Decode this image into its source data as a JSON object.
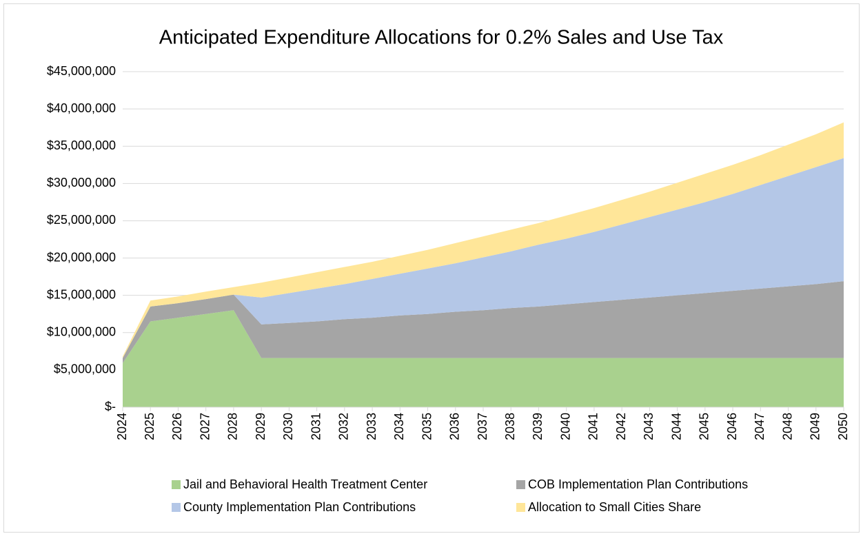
{
  "chart_data": {
    "type": "stacked_area",
    "title": "Anticipated Expenditure Allocations for 0.2% Sales and Use Tax",
    "categories": [
      "2024",
      "2025",
      "2026",
      "2027",
      "2028",
      "2029",
      "2030",
      "2031",
      "2032",
      "2033",
      "2034",
      "2035",
      "2036",
      "2037",
      "2038",
      "2039",
      "2040",
      "2041",
      "2042",
      "2043",
      "2044",
      "2045",
      "2046",
      "2047",
      "2048",
      "2049",
      "2050"
    ],
    "series": [
      {
        "name": "Jail and Behavioral Health Treatment Center",
        "color": "#a9d18e",
        "values": [
          5900000,
          11500000,
          12000000,
          12500000,
          13000000,
          6600000,
          6600000,
          6600000,
          6600000,
          6600000,
          6600000,
          6600000,
          6600000,
          6600000,
          6600000,
          6600000,
          6600000,
          6600000,
          6600000,
          6600000,
          6600000,
          6600000,
          6600000,
          6600000,
          6600000,
          6600000,
          6600000
        ]
      },
      {
        "name": "COB Implementation Plan Contributions",
        "color": "#a5a5a5",
        "values": [
          700000,
          2000000,
          1950000,
          2000000,
          2100000,
          4500000,
          4700000,
          4900000,
          5200000,
          5400000,
          5700000,
          5900000,
          6200000,
          6400000,
          6700000,
          6900000,
          7200000,
          7500000,
          7800000,
          8100000,
          8400000,
          8700000,
          9000000,
          9300000,
          9600000,
          9900000,
          10300000
        ]
      },
      {
        "name": "County Implementation Plan Contributions",
        "color": "#b4c7e7",
        "values": [
          0,
          0,
          0,
          0,
          0,
          3600000,
          4000000,
          4400000,
          4700000,
          5200000,
          5600000,
          6100000,
          6500000,
          7100000,
          7600000,
          8300000,
          8800000,
          9400000,
          10100000,
          10800000,
          11500000,
          12200000,
          13000000,
          13900000,
          14800000,
          15700000,
          16500000
        ]
      },
      {
        "name": "Allocation to Small Cities Share",
        "color": "#ffe699",
        "values": [
          200000,
          800000,
          900000,
          1000000,
          1000000,
          2000000,
          2100000,
          2200000,
          2300000,
          2300000,
          2400000,
          2500000,
          2700000,
          2800000,
          2900000,
          2900000,
          3100000,
          3200000,
          3300000,
          3400000,
          3600000,
          3800000,
          3900000,
          4000000,
          4200000,
          4400000,
          4800000
        ]
      }
    ],
    "ylim": [
      0,
      45000000
    ],
    "yticks": [
      {
        "value": 0,
        "label": "$-"
      },
      {
        "value": 5000000,
        "label": "$5,000,000"
      },
      {
        "value": 10000000,
        "label": "$10,000,000"
      },
      {
        "value": 15000000,
        "label": "$15,000,000"
      },
      {
        "value": 20000000,
        "label": "$20,000,000"
      },
      {
        "value": 25000000,
        "label": "$25,000,000"
      },
      {
        "value": 30000000,
        "label": "$30,000,000"
      },
      {
        "value": 35000000,
        "label": "$35,000,000"
      },
      {
        "value": 40000000,
        "label": "$40,000,000"
      },
      {
        "value": 45000000,
        "label": "$45,000,000"
      }
    ],
    "grid": true,
    "legend": "bottom"
  }
}
